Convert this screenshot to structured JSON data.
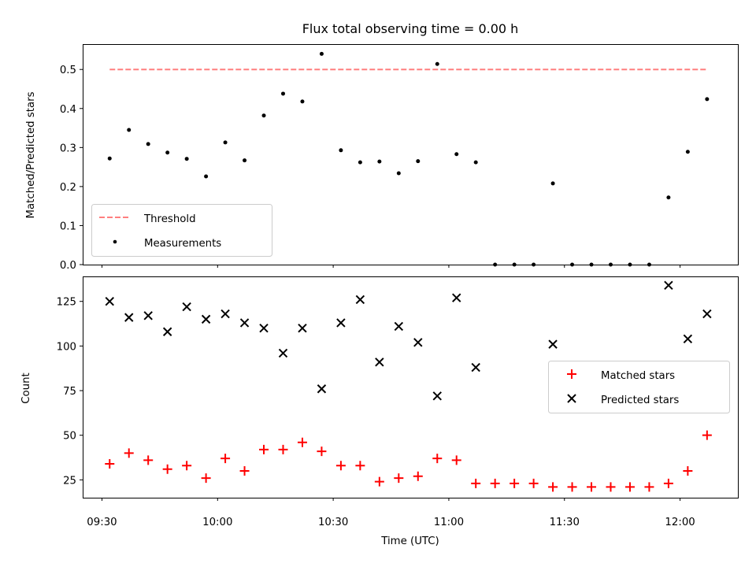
{
  "chart_data": [
    {
      "type": "scatter",
      "title": "Flux total observing time = 0.00 h",
      "xlabel": "",
      "ylabel": "Matched/Predicted stars",
      "ylim": [
        0,
        0.565
      ],
      "yticks": [
        "0.0",
        "0.1",
        "0.2",
        "0.3",
        "0.4",
        "0.5"
      ],
      "ytick_values": [
        0,
        0.1,
        0.2,
        0.3,
        0.4,
        0.5
      ],
      "xlim": [
        "09:25",
        "12:15"
      ],
      "legend": "lower-left",
      "grid": false,
      "series": [
        {
          "name": "Threshold",
          "kind": "line",
          "style": "dashed",
          "color": "#ff7f7f",
          "points": [
            {
              "x": "09:32",
              "y": 0.5
            },
            {
              "x": "12:07",
              "y": 0.5
            }
          ]
        },
        {
          "name": "Measurements",
          "kind": "scatter",
          "marker": "dot",
          "color": "#000000",
          "points": [
            {
              "x": "09:32",
              "y": 0.272
            },
            {
              "x": "09:37",
              "y": 0.345
            },
            {
              "x": "09:42",
              "y": 0.309
            },
            {
              "x": "09:47",
              "y": 0.287
            },
            {
              "x": "09:52",
              "y": 0.271
            },
            {
              "x": "09:57",
              "y": 0.226
            },
            {
              "x": "10:02",
              "y": 0.313
            },
            {
              "x": "10:07",
              "y": 0.267
            },
            {
              "x": "10:12",
              "y": 0.382
            },
            {
              "x": "10:17",
              "y": 0.438
            },
            {
              "x": "10:22",
              "y": 0.418
            },
            {
              "x": "10:27",
              "y": 0.54
            },
            {
              "x": "10:32",
              "y": 0.293
            },
            {
              "x": "10:37",
              "y": 0.262
            },
            {
              "x": "10:42",
              "y": 0.264
            },
            {
              "x": "10:47",
              "y": 0.234
            },
            {
              "x": "10:52",
              "y": 0.265
            },
            {
              "x": "10:57",
              "y": 0.514
            },
            {
              "x": "11:02",
              "y": 0.283
            },
            {
              "x": "11:07",
              "y": 0.262
            },
            {
              "x": "11:12",
              "y": 0
            },
            {
              "x": "11:17",
              "y": 0
            },
            {
              "x": "11:22",
              "y": 0
            },
            {
              "x": "11:27",
              "y": 0.208
            },
            {
              "x": "11:32",
              "y": 0
            },
            {
              "x": "11:37",
              "y": 0
            },
            {
              "x": "11:42",
              "y": 0
            },
            {
              "x": "11:47",
              "y": 0
            },
            {
              "x": "11:52",
              "y": 0
            },
            {
              "x": "11:57",
              "y": 0.172
            },
            {
              "x": "12:02",
              "y": 0.289
            },
            {
              "x": "12:07",
              "y": 0.424
            }
          ]
        }
      ]
    },
    {
      "type": "scatter",
      "title": "",
      "xlabel": "Time (UTC)",
      "ylabel": "Count",
      "ylim": [
        15,
        139
      ],
      "yticks": [
        "25",
        "50",
        "75",
        "100",
        "125"
      ],
      "ytick_values": [
        25,
        50,
        75,
        100,
        125
      ],
      "xlim": [
        "09:25",
        "12:15"
      ],
      "xticks": [
        "09:30",
        "10:00",
        "10:30",
        "11:00",
        "11:30",
        "12:00"
      ],
      "legend": "center-right",
      "grid": false,
      "series": [
        {
          "name": "Matched stars",
          "kind": "scatter",
          "marker": "plus",
          "color": "#ff0000",
          "points": [
            {
              "x": "09:32",
              "y": 34
            },
            {
              "x": "09:37",
              "y": 40
            },
            {
              "x": "09:42",
              "y": 36
            },
            {
              "x": "09:47",
              "y": 31
            },
            {
              "x": "09:52",
              "y": 33
            },
            {
              "x": "09:57",
              "y": 26
            },
            {
              "x": "10:02",
              "y": 37
            },
            {
              "x": "10:07",
              "y": 30
            },
            {
              "x": "10:12",
              "y": 42
            },
            {
              "x": "10:17",
              "y": 42
            },
            {
              "x": "10:22",
              "y": 46
            },
            {
              "x": "10:27",
              "y": 41
            },
            {
              "x": "10:32",
              "y": 33
            },
            {
              "x": "10:37",
              "y": 33
            },
            {
              "x": "10:42",
              "y": 24
            },
            {
              "x": "10:47",
              "y": 26
            },
            {
              "x": "10:52",
              "y": 27
            },
            {
              "x": "10:57",
              "y": 37
            },
            {
              "x": "11:02",
              "y": 36
            },
            {
              "x": "11:07",
              "y": 23
            },
            {
              "x": "11:12",
              "y": 23
            },
            {
              "x": "11:17",
              "y": 23
            },
            {
              "x": "11:22",
              "y": 23
            },
            {
              "x": "11:27",
              "y": 21
            },
            {
              "x": "11:32",
              "y": 21
            },
            {
              "x": "11:37",
              "y": 21
            },
            {
              "x": "11:42",
              "y": 21
            },
            {
              "x": "11:47",
              "y": 21
            },
            {
              "x": "11:52",
              "y": 21
            },
            {
              "x": "11:57",
              "y": 23
            },
            {
              "x": "12:02",
              "y": 30
            },
            {
              "x": "12:07",
              "y": 50
            }
          ]
        },
        {
          "name": "Predicted stars",
          "kind": "scatter",
          "marker": "x",
          "color": "#000000",
          "points": [
            {
              "x": "09:32",
              "y": 125
            },
            {
              "x": "09:37",
              "y": 116
            },
            {
              "x": "09:42",
              "y": 117
            },
            {
              "x": "09:47",
              "y": 108
            },
            {
              "x": "09:52",
              "y": 122
            },
            {
              "x": "09:57",
              "y": 115
            },
            {
              "x": "10:02",
              "y": 118
            },
            {
              "x": "10:07",
              "y": 113
            },
            {
              "x": "10:12",
              "y": 110
            },
            {
              "x": "10:17",
              "y": 96
            },
            {
              "x": "10:22",
              "y": 110
            },
            {
              "x": "10:27",
              "y": 76
            },
            {
              "x": "10:32",
              "y": 113
            },
            {
              "x": "10:37",
              "y": 126
            },
            {
              "x": "10:42",
              "y": 91
            },
            {
              "x": "10:47",
              "y": 111
            },
            {
              "x": "10:52",
              "y": 102
            },
            {
              "x": "10:57",
              "y": 72
            },
            {
              "x": "11:02",
              "y": 127
            },
            {
              "x": "11:07",
              "y": 88
            },
            {
              "x": "11:27",
              "y": 101
            },
            {
              "x": "11:57",
              "y": 134
            },
            {
              "x": "12:02",
              "y": 104
            },
            {
              "x": "12:07",
              "y": 118
            }
          ]
        }
      ]
    }
  ]
}
